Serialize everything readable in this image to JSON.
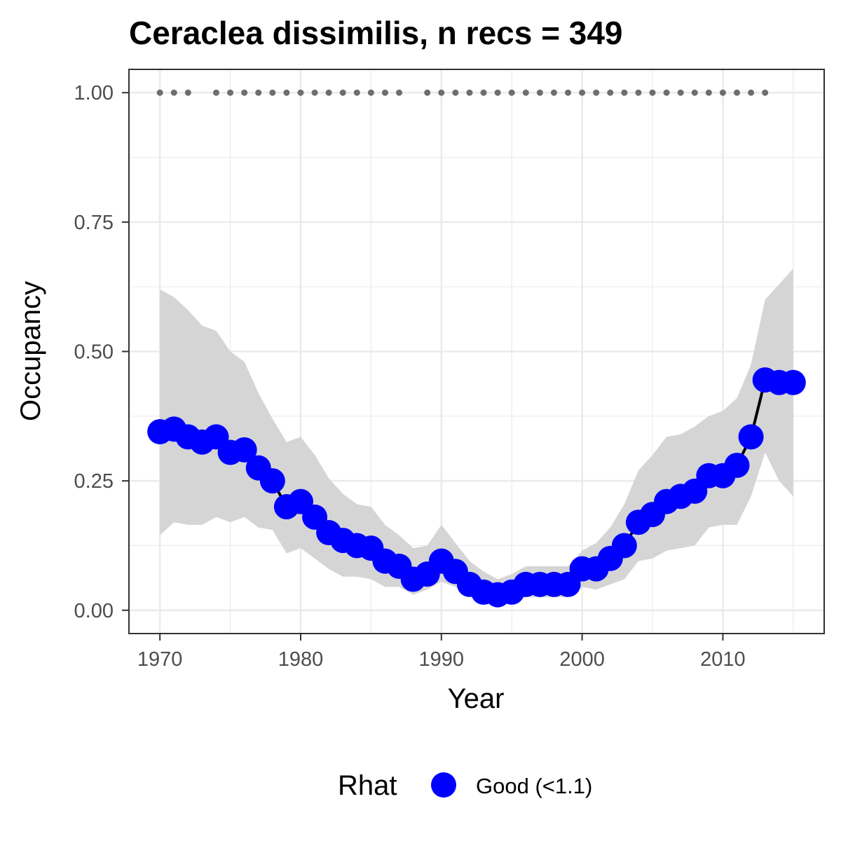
{
  "chart_data": {
    "type": "line",
    "title": "Ceraclea dissimilis, n recs = 349",
    "xlabel": "Year",
    "ylabel": "Occupancy",
    "xlim": [
      1967.8,
      1917.2
    ],
    "ylim": [
      -0.045,
      1.045
    ],
    "x_ticks": [
      1970,
      1980,
      1990,
      2000,
      2010
    ],
    "x_tick_labels": [
      "1970",
      "1980",
      "1990",
      "2000",
      "2010"
    ],
    "y_ticks": [
      0,
      0.25,
      0.5,
      0.75,
      1
    ],
    "y_tick_labels": [
      "0.00",
      "0.25",
      "0.50",
      "0.75",
      "1.00"
    ],
    "grid": true,
    "legend": {
      "title": "Rhat",
      "position": "bottom",
      "entries": [
        {
          "label": "Good (<1.1)",
          "color": "#0000ff"
        }
      ]
    },
    "colors": {
      "points": "#0000ff",
      "line": "#000000",
      "ribbon": "#d5d5d5",
      "record_dots": "#6e6e6e",
      "grid": "#ebebeb",
      "panel_border": "#333333"
    },
    "series": [
      {
        "type": "line+points",
        "x": [
          1970,
          1971,
          1972,
          1973,
          1974,
          1975,
          1976,
          1977,
          1978,
          1979,
          1980,
          1981,
          1982,
          1983,
          1984,
          1985,
          1986,
          1987,
          1988,
          1989,
          1990,
          1991,
          1992,
          1993,
          1994,
          1995,
          1996,
          1997,
          1998,
          1999,
          2000,
          2001,
          2002,
          2003,
          2004,
          2005,
          2006,
          2007,
          2008,
          2009,
          2010,
          2011,
          2012,
          2013,
          2014,
          2015
        ],
        "values": [
          0.345,
          0.35,
          0.335,
          0.325,
          0.335,
          0.305,
          0.31,
          0.275,
          0.25,
          0.2,
          0.21,
          0.18,
          0.15,
          0.135,
          0.125,
          0.12,
          0.095,
          0.085,
          0.06,
          0.07,
          0.095,
          0.075,
          0.05,
          0.035,
          0.03,
          0.035,
          0.05,
          0.05,
          0.05,
          0.05,
          0.08,
          0.08,
          0.1,
          0.125,
          0.17,
          0.185,
          0.21,
          0.22,
          0.23,
          0.26,
          0.26,
          0.28,
          0.335,
          0.445,
          0.44,
          0.44
        ]
      },
      {
        "type": "ribbon",
        "x": [
          1970,
          1971,
          1972,
          1973,
          1974,
          1975,
          1976,
          1977,
          1978,
          1979,
          1980,
          1981,
          1982,
          1983,
          1984,
          1985,
          1986,
          1987,
          1988,
          1989,
          1990,
          1991,
          1992,
          1993,
          1994,
          1995,
          1996,
          1997,
          1998,
          1999,
          2000,
          2001,
          2002,
          2003,
          2004,
          2005,
          2006,
          2007,
          2008,
          2009,
          2010,
          2011,
          2012,
          2013,
          2014,
          2015
        ],
        "upper": [
          0.62,
          0.605,
          0.58,
          0.55,
          0.54,
          0.5,
          0.48,
          0.42,
          0.37,
          0.325,
          0.335,
          0.3,
          0.255,
          0.225,
          0.205,
          0.2,
          0.165,
          0.145,
          0.12,
          0.125,
          0.165,
          0.13,
          0.095,
          0.075,
          0.06,
          0.07,
          0.085,
          0.085,
          0.085,
          0.085,
          0.115,
          0.13,
          0.16,
          0.205,
          0.27,
          0.3,
          0.335,
          0.34,
          0.355,
          0.375,
          0.385,
          0.41,
          0.475,
          0.6,
          0.63,
          0.66
        ],
        "lower": [
          0.145,
          0.17,
          0.165,
          0.165,
          0.18,
          0.17,
          0.18,
          0.16,
          0.155,
          0.11,
          0.12,
          0.1,
          0.08,
          0.065,
          0.065,
          0.06,
          0.045,
          0.045,
          0.03,
          0.04,
          0.055,
          0.045,
          0.03,
          0.02,
          0.015,
          0.015,
          0.025,
          0.025,
          0.025,
          0.025,
          0.045,
          0.04,
          0.05,
          0.06,
          0.095,
          0.1,
          0.115,
          0.12,
          0.125,
          0.16,
          0.165,
          0.165,
          0.22,
          0.305,
          0.25,
          0.22
        ]
      },
      {
        "type": "record-dots",
        "y": 1,
        "x": [
          1970,
          1971,
          1972,
          1974,
          1975,
          1976,
          1977,
          1978,
          1979,
          1980,
          1981,
          1982,
          1983,
          1984,
          1985,
          1986,
          1987,
          1989,
          1990,
          1991,
          1992,
          1993,
          1994,
          1995,
          1996,
          1997,
          1998,
          1999,
          2000,
          2001,
          2002,
          2003,
          2004,
          2005,
          2006,
          2007,
          2008,
          2009,
          2010,
          2011,
          2012,
          2013
        ]
      }
    ]
  }
}
